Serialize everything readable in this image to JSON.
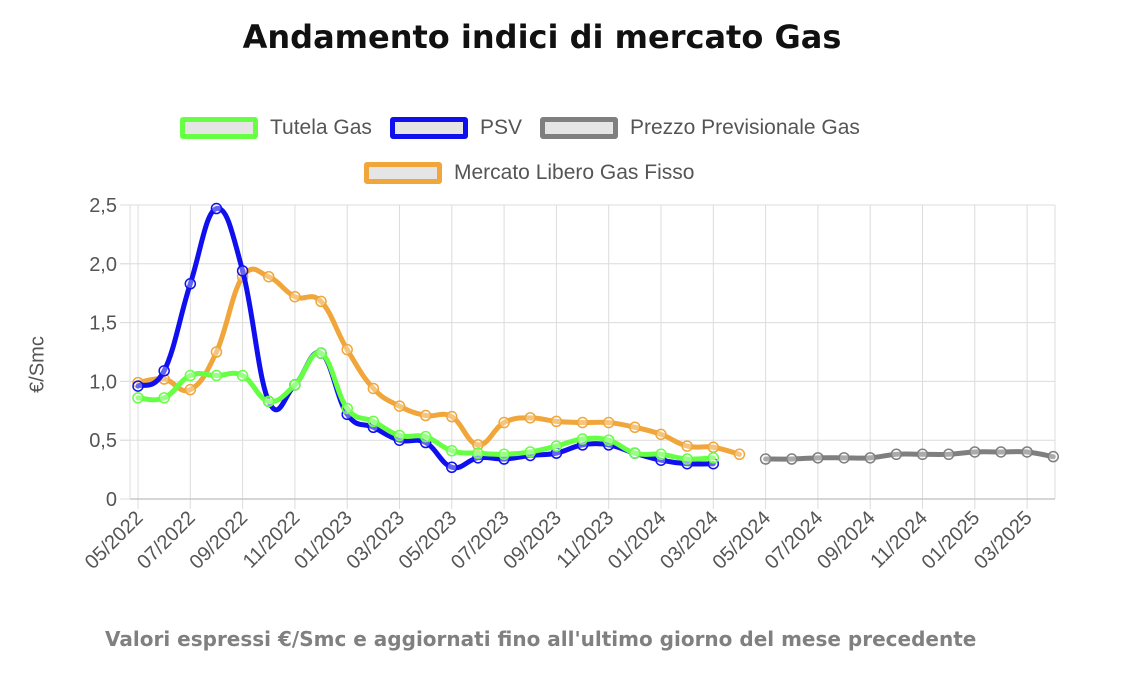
{
  "chart_data": {
    "type": "line",
    "title": "Andamento indici di mercato Gas",
    "ylabel": "€/Smc",
    "xlabel": "",
    "footnote": "Valori espressi €/Smc e aggiornati fino all'ultimo giorno del mese precedente",
    "ylim": [
      0,
      2.5
    ],
    "yticks": [
      "0",
      "0,5",
      "1,0",
      "1,5",
      "2,0",
      "2,5"
    ],
    "x_labels": [
      "05/2022",
      "07/2022",
      "09/2022",
      "11/2022",
      "01/2023",
      "03/2023",
      "05/2023",
      "07/2023",
      "09/2023",
      "11/2023",
      "01/2024",
      "03/2024",
      "05/2024",
      "07/2024",
      "09/2024",
      "11/2024",
      "01/2025",
      "03/2025"
    ],
    "months": [
      "05/2022",
      "06/2022",
      "07/2022",
      "08/2022",
      "09/2022",
      "10/2022",
      "11/2022",
      "12/2022",
      "01/2023",
      "02/2023",
      "03/2023",
      "04/2023",
      "05/2023",
      "06/2023",
      "07/2023",
      "08/2023",
      "09/2023",
      "10/2023",
      "11/2023",
      "12/2023",
      "01/2024",
      "02/2024",
      "03/2024",
      "04/2024",
      "05/2024",
      "06/2024",
      "07/2024",
      "08/2024",
      "09/2024",
      "10/2024",
      "11/2024",
      "12/2024",
      "01/2025",
      "02/2025",
      "03/2025",
      "04/2025"
    ],
    "grid": true,
    "legend_position": "top",
    "series": [
      {
        "name": "Tutela Gas",
        "color": "#66ff44",
        "start": 0,
        "values": [
          0.86,
          0.86,
          1.05,
          1.05,
          1.05,
          0.83,
          0.97,
          1.24,
          0.77,
          0.66,
          0.54,
          0.53,
          0.41,
          0.39,
          0.38,
          0.4,
          0.45,
          0.51,
          0.5,
          0.39,
          0.38,
          0.34,
          0.35
        ]
      },
      {
        "name": "PSV",
        "color": "#1010ee",
        "start": 0,
        "values": [
          0.96,
          1.09,
          1.83,
          2.47,
          1.94,
          0.83,
          0.97,
          1.24,
          0.72,
          0.61,
          0.5,
          0.48,
          0.27,
          0.35,
          0.34,
          0.37,
          0.39,
          0.46,
          0.46,
          0.39,
          0.33,
          0.3,
          0.3
        ]
      },
      {
        "name": "Prezzo Previsionale Gas",
        "color": "#7f7f7f",
        "start": 24,
        "values": [
          0.34,
          0.34,
          0.35,
          0.35,
          0.35,
          0.38,
          0.38,
          0.38,
          0.4,
          0.4,
          0.4,
          0.36
        ]
      },
      {
        "name": "Mercato Libero Gas Fisso",
        "color": "#f0a63a",
        "start": 0,
        "values": [
          0.99,
          1.02,
          0.93,
          1.25,
          1.89,
          1.89,
          1.72,
          1.68,
          1.27,
          0.94,
          0.79,
          0.71,
          0.7,
          0.46,
          0.65,
          0.69,
          0.66,
          0.65,
          0.65,
          0.61,
          0.55,
          0.45,
          0.44,
          0.38
        ]
      }
    ]
  }
}
